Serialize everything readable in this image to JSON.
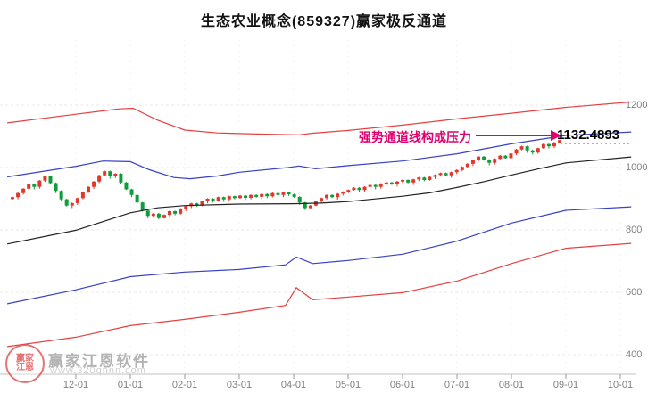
{
  "title": "生态农业概念(859327)赢家极反通道",
  "annotation": {
    "text": "强势通道线构成压力",
    "price_label": "1132.4893"
  },
  "watermark": {
    "brand": "赢家江恩软件",
    "url": "www.320qnnn.com",
    "seal_top": "赢家",
    "seal_bottom": "江恩"
  },
  "axes": {
    "y_ticks": [
      "1200",
      "1000",
      "800",
      "600",
      "400"
    ],
    "x_ticks": [
      "12-01",
      "01-01",
      "02-01",
      "03-01",
      "04-01",
      "05-01",
      "06-01",
      "07-01",
      "08-01",
      "09-01",
      "10-01"
    ]
  },
  "colors": {
    "up_candle": "#e0392b",
    "down_candle": "#0f9d3c",
    "channel_red": "#e84040",
    "channel_blue": "#3941c8",
    "mid_black": "#222222",
    "arrow": "#e0006e",
    "pressure_dotted": "#0b9a3c",
    "grid": "#e9e9e9",
    "grid_vertical": "#f3f3f3",
    "axis_line": "#c0c0c0",
    "axis_text": "#808080"
  },
  "chart_data": {
    "type": "candlestick",
    "title": "生态农业概念(859327)赢家极反通道",
    "ylabel": "",
    "xlabel": "",
    "y_ticks": [
      1200,
      1000,
      800,
      600,
      400
    ],
    "ylim": [
      400,
      1260
    ],
    "x_tick_labels": [
      "12-01",
      "01-01",
      "02-01",
      "03-01",
      "04-01",
      "05-01",
      "06-01",
      "07-01",
      "08-01",
      "09-01",
      "10-01"
    ],
    "grid": true,
    "legend": "none",
    "pressure_value": 1132.4893,
    "candles_close": [
      905,
      918,
      932,
      947,
      938,
      958,
      972,
      950,
      925,
      898,
      878,
      886,
      902,
      920,
      938,
      955,
      975,
      988,
      972,
      980,
      952,
      930,
      912,
      888,
      862,
      845,
      852,
      838,
      848,
      860,
      852,
      868,
      876,
      885,
      878,
      892,
      900,
      893,
      905,
      898,
      908,
      902,
      910,
      903,
      912,
      906,
      915,
      908,
      918,
      912,
      920,
      914,
      906,
      888,
      870,
      878,
      892,
      902,
      912,
      905,
      916,
      922,
      928,
      935,
      928,
      938,
      944,
      938,
      948,
      952,
      946,
      955,
      960,
      952,
      962,
      968,
      960,
      970,
      976,
      982,
      975,
      985,
      992,
      1002,
      1012,
      1024,
      1035,
      1025,
      1015,
      1028,
      1038,
      1030,
      1045,
      1058,
      1068,
      1055,
      1048,
      1062,
      1075,
      1068,
      1080,
      1088
    ],
    "channel_lines": [
      {
        "name": "upper-red-channel",
        "color": "#e84040",
        "points": [
          [
            -1.26,
            1143
          ],
          [
            0,
            1171
          ],
          [
            0.8,
            1188
          ],
          [
            1.05,
            1190
          ],
          [
            1.5,
            1152
          ],
          [
            2,
            1120
          ],
          [
            2.6,
            1111
          ],
          [
            3.5,
            1107
          ],
          [
            4.1,
            1105
          ],
          [
            4.35,
            1110
          ],
          [
            5,
            1119
          ],
          [
            6,
            1136
          ],
          [
            7,
            1156
          ],
          [
            8,
            1174
          ],
          [
            9,
            1193
          ],
          [
            10.2,
            1210
          ]
        ]
      },
      {
        "name": "upper-blue-channel",
        "color": "#3941c8",
        "points": [
          [
            -1.26,
            970
          ],
          [
            0,
            1004
          ],
          [
            0.5,
            1021
          ],
          [
            1,
            1019
          ],
          [
            1.35,
            993
          ],
          [
            1.8,
            968
          ],
          [
            2.1,
            964
          ],
          [
            2.6,
            973
          ],
          [
            3,
            985
          ],
          [
            3.9,
            1000
          ],
          [
            4.1,
            1005
          ],
          [
            4.4,
            996
          ],
          [
            5,
            1006
          ],
          [
            6,
            1021
          ],
          [
            7,
            1044
          ],
          [
            8,
            1076
          ],
          [
            9,
            1103
          ],
          [
            10.2,
            1114
          ]
        ]
      },
      {
        "name": "middle-black-line",
        "color": "#222222",
        "points": [
          [
            -1.26,
            755
          ],
          [
            0,
            799
          ],
          [
            0.7,
            838
          ],
          [
            1,
            855
          ],
          [
            1.5,
            871
          ],
          [
            2,
            878
          ],
          [
            3,
            883
          ],
          [
            4,
            884
          ],
          [
            4.5,
            886
          ],
          [
            5,
            891
          ],
          [
            6,
            908
          ],
          [
            6.5,
            919
          ],
          [
            7,
            936
          ],
          [
            7.5,
            955
          ],
          [
            8,
            976
          ],
          [
            8.5,
            996
          ],
          [
            9,
            1015
          ],
          [
            10.2,
            1034
          ]
        ]
      },
      {
        "name": "lower-blue-channel",
        "color": "#3941c8",
        "points": [
          [
            -1.26,
            563
          ],
          [
            0,
            608
          ],
          [
            1,
            650
          ],
          [
            2,
            665
          ],
          [
            3,
            673
          ],
          [
            3.85,
            688
          ],
          [
            4.05,
            713
          ],
          [
            4.35,
            692
          ],
          [
            5,
            702
          ],
          [
            6,
            722
          ],
          [
            7,
            764
          ],
          [
            8,
            822
          ],
          [
            9,
            863
          ],
          [
            10.2,
            874
          ]
        ]
      },
      {
        "name": "lower-red-channel",
        "color": "#e84040",
        "points": [
          [
            -1.26,
            426
          ],
          [
            0,
            456
          ],
          [
            1,
            493
          ],
          [
            2,
            513
          ],
          [
            3,
            536
          ],
          [
            3.85,
            558
          ],
          [
            4.05,
            615
          ],
          [
            4.35,
            576
          ],
          [
            5,
            585
          ],
          [
            6,
            599
          ],
          [
            7,
            636
          ],
          [
            8,
            692
          ],
          [
            9,
            741
          ],
          [
            10.2,
            757
          ]
        ]
      }
    ]
  }
}
